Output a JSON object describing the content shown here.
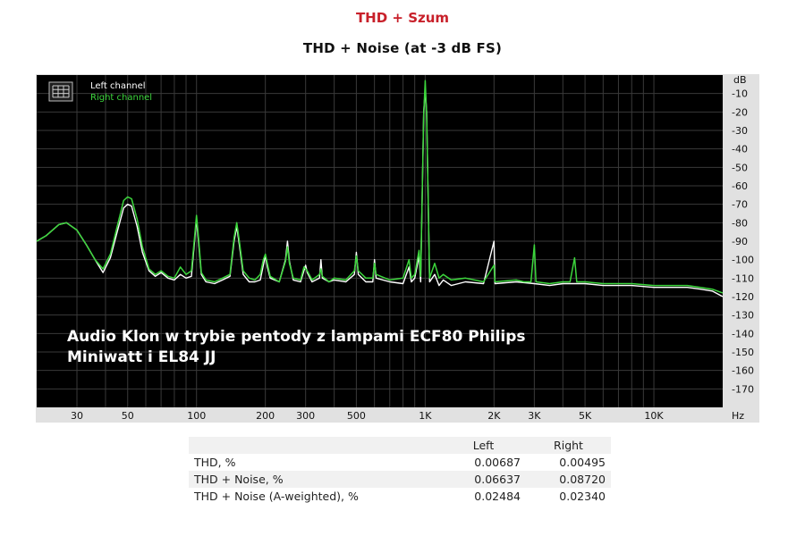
{
  "heading": "THD + Szum",
  "chart_data": {
    "type": "line",
    "title": "THD + Noise (at -3 dB FS)",
    "x_scale": "log",
    "xlim": [
      20,
      20000
    ],
    "ylim": [
      -180,
      0
    ],
    "y_unit": "dB",
    "x_unit": "Hz",
    "x_ticks": [
      {
        "value": 30,
        "label": "30"
      },
      {
        "value": 50,
        "label": "50"
      },
      {
        "value": 100,
        "label": "100"
      },
      {
        "value": 200,
        "label": "200"
      },
      {
        "value": 300,
        "label": "300"
      },
      {
        "value": 500,
        "label": "500"
      },
      {
        "value": 1000,
        "label": "1K"
      },
      {
        "value": 2000,
        "label": "2K"
      },
      {
        "value": 3000,
        "label": "3K"
      },
      {
        "value": 5000,
        "label": "5K"
      },
      {
        "value": 10000,
        "label": "10K"
      }
    ],
    "y_ticks": [
      {
        "value": -10,
        "label": "-10"
      },
      {
        "value": -20,
        "label": "-20"
      },
      {
        "value": -30,
        "label": "-30"
      },
      {
        "value": -40,
        "label": "-40"
      },
      {
        "value": -50,
        "label": "-50"
      },
      {
        "value": -60,
        "label": "-60"
      },
      {
        "value": -70,
        "label": "-70"
      },
      {
        "value": -80,
        "label": "-80"
      },
      {
        "value": -90,
        "label": "-90"
      },
      {
        "value": -100,
        "label": "-100"
      },
      {
        "value": -110,
        "label": "-110"
      },
      {
        "value": -120,
        "label": "-120"
      },
      {
        "value": -130,
        "label": "-130"
      },
      {
        "value": -140,
        "label": "-140"
      },
      {
        "value": -150,
        "label": "-150"
      },
      {
        "value": -160,
        "label": "-160"
      },
      {
        "value": -170,
        "label": "-170"
      }
    ],
    "grid": true,
    "background": "#000000",
    "grid_color": "#3a3a3a",
    "legend_position": "top-left",
    "series": [
      {
        "name": "Left channel",
        "color": "#ffffff",
        "points": [
          [
            20,
            -90
          ],
          [
            22,
            -87
          ],
          [
            25,
            -81
          ],
          [
            27,
            -80
          ],
          [
            30,
            -84
          ],
          [
            33,
            -92
          ],
          [
            36,
            -100
          ],
          [
            39,
            -107
          ],
          [
            42,
            -99
          ],
          [
            45,
            -85
          ],
          [
            48,
            -72
          ],
          [
            50,
            -70
          ],
          [
            52,
            -71
          ],
          [
            55,
            -82
          ],
          [
            58,
            -96
          ],
          [
            62,
            -106
          ],
          [
            66,
            -109
          ],
          [
            70,
            -107
          ],
          [
            75,
            -110
          ],
          [
            80,
            -111
          ],
          [
            85,
            -108
          ],
          [
            90,
            -110
          ],
          [
            95,
            -109
          ],
          [
            98,
            -90
          ],
          [
            100,
            -78
          ],
          [
            102,
            -90
          ],
          [
            105,
            -108
          ],
          [
            110,
            -112
          ],
          [
            120,
            -113
          ],
          [
            130,
            -111
          ],
          [
            140,
            -109
          ],
          [
            146,
            -90
          ],
          [
            150,
            -82
          ],
          [
            154,
            -92
          ],
          [
            160,
            -108
          ],
          [
            170,
            -112
          ],
          [
            180,
            -112
          ],
          [
            190,
            -111
          ],
          [
            196,
            -103
          ],
          [
            200,
            -98
          ],
          [
            204,
            -104
          ],
          [
            210,
            -110
          ],
          [
            230,
            -112
          ],
          [
            245,
            -100
          ],
          [
            250,
            -90
          ],
          [
            255,
            -101
          ],
          [
            265,
            -111
          ],
          [
            285,
            -112
          ],
          [
            295,
            -106
          ],
          [
            300,
            -103
          ],
          [
            305,
            -107
          ],
          [
            320,
            -112
          ],
          [
            345,
            -110
          ],
          [
            350,
            -100
          ],
          [
            355,
            -110
          ],
          [
            380,
            -112
          ],
          [
            400,
            -111
          ],
          [
            450,
            -112
          ],
          [
            490,
            -108
          ],
          [
            500,
            -96
          ],
          [
            510,
            -108
          ],
          [
            550,
            -112
          ],
          [
            590,
            -112
          ],
          [
            600,
            -100
          ],
          [
            610,
            -110
          ],
          [
            700,
            -112
          ],
          [
            800,
            -113
          ],
          [
            850,
            -104
          ],
          [
            870,
            -112
          ],
          [
            900,
            -110
          ],
          [
            940,
            -98
          ],
          [
            955,
            -112
          ],
          [
            985,
            -20
          ],
          [
            1000,
            -8
          ],
          [
            1015,
            -20
          ],
          [
            1045,
            -112
          ],
          [
            1100,
            -108
          ],
          [
            1150,
            -114
          ],
          [
            1200,
            -111
          ],
          [
            1300,
            -114
          ],
          [
            1500,
            -112
          ],
          [
            1800,
            -113
          ],
          [
            2000,
            -90
          ],
          [
            2020,
            -113
          ],
          [
            2500,
            -112
          ],
          [
            3000,
            -113
          ],
          [
            3500,
            -114
          ],
          [
            4000,
            -113
          ],
          [
            5000,
            -113
          ],
          [
            6000,
            -114
          ],
          [
            8000,
            -114
          ],
          [
            10000,
            -115
          ],
          [
            12000,
            -115
          ],
          [
            14000,
            -115
          ],
          [
            16000,
            -116
          ],
          [
            18000,
            -117
          ],
          [
            20000,
            -120
          ]
        ]
      },
      {
        "name": "Right channel",
        "color": "#3cd63c",
        "points": [
          [
            20,
            -90
          ],
          [
            22,
            -87
          ],
          [
            25,
            -81
          ],
          [
            27,
            -80
          ],
          [
            30,
            -84
          ],
          [
            33,
            -92
          ],
          [
            36,
            -100
          ],
          [
            39,
            -105
          ],
          [
            42,
            -97
          ],
          [
            45,
            -82
          ],
          [
            48,
            -68
          ],
          [
            50,
            -66
          ],
          [
            52,
            -67
          ],
          [
            55,
            -78
          ],
          [
            58,
            -93
          ],
          [
            62,
            -105
          ],
          [
            66,
            -108
          ],
          [
            70,
            -106
          ],
          [
            75,
            -109
          ],
          [
            80,
            -110
          ],
          [
            85,
            -104
          ],
          [
            90,
            -108
          ],
          [
            95,
            -106
          ],
          [
            98,
            -88
          ],
          [
            100,
            -76
          ],
          [
            102,
            -88
          ],
          [
            105,
            -107
          ],
          [
            110,
            -111
          ],
          [
            120,
            -112
          ],
          [
            130,
            -110
          ],
          [
            140,
            -108
          ],
          [
            146,
            -88
          ],
          [
            150,
            -80
          ],
          [
            154,
            -90
          ],
          [
            160,
            -106
          ],
          [
            170,
            -110
          ],
          [
            180,
            -111
          ],
          [
            190,
            -108
          ],
          [
            196,
            -100
          ],
          [
            200,
            -97
          ],
          [
            204,
            -102
          ],
          [
            210,
            -109
          ],
          [
            230,
            -112
          ],
          [
            245,
            -101
          ],
          [
            250,
            -93
          ],
          [
            255,
            -102
          ],
          [
            265,
            -110
          ],
          [
            285,
            -111
          ],
          [
            295,
            -104
          ],
          [
            300,
            -105
          ],
          [
            305,
            -106
          ],
          [
            320,
            -111
          ],
          [
            345,
            -108
          ],
          [
            350,
            -105
          ],
          [
            355,
            -109
          ],
          [
            380,
            -112
          ],
          [
            400,
            -110
          ],
          [
            450,
            -111
          ],
          [
            490,
            -106
          ],
          [
            500,
            -98
          ],
          [
            510,
            -106
          ],
          [
            550,
            -110
          ],
          [
            590,
            -110
          ],
          [
            600,
            -102
          ],
          [
            610,
            -108
          ],
          [
            700,
            -111
          ],
          [
            800,
            -110
          ],
          [
            850,
            -100
          ],
          [
            870,
            -110
          ],
          [
            900,
            -108
          ],
          [
            940,
            -95
          ],
          [
            955,
            -109
          ],
          [
            985,
            -22
          ],
          [
            1000,
            -3
          ],
          [
            1015,
            -22
          ],
          [
            1045,
            -110
          ],
          [
            1100,
            -102
          ],
          [
            1150,
            -110
          ],
          [
            1200,
            -108
          ],
          [
            1300,
            -111
          ],
          [
            1500,
            -110
          ],
          [
            1800,
            -112
          ],
          [
            2000,
            -103
          ],
          [
            2020,
            -112
          ],
          [
            2500,
            -111
          ],
          [
            2700,
            -112
          ],
          [
            2900,
            -112
          ],
          [
            3000,
            -92
          ],
          [
            3050,
            -112
          ],
          [
            3500,
            -113
          ],
          [
            4000,
            -112
          ],
          [
            4300,
            -112
          ],
          [
            4500,
            -99
          ],
          [
            4600,
            -112
          ],
          [
            5000,
            -112
          ],
          [
            6000,
            -113
          ],
          [
            8000,
            -113
          ],
          [
            10000,
            -114
          ],
          [
            12000,
            -114
          ],
          [
            14000,
            -114
          ],
          [
            16000,
            -115
          ],
          [
            18000,
            -116
          ],
          [
            20000,
            -118
          ]
        ]
      }
    ],
    "annotation": [
      "Audio Klon w trybie pentody z lampami ECF80 Philips",
      "Miniwatt i EL84 JJ"
    ]
  },
  "stats_table": {
    "headers": [
      "",
      "Left",
      "Right"
    ],
    "rows": [
      {
        "label": "THD, %",
        "left": "0.00687",
        "right": "0.00495"
      },
      {
        "label": "THD + Noise, %",
        "left": "0.06637",
        "right": "0.08720"
      },
      {
        "label": "THD + Noise (A-weighted), %",
        "left": "0.02484",
        "right": "0.02340"
      }
    ]
  }
}
